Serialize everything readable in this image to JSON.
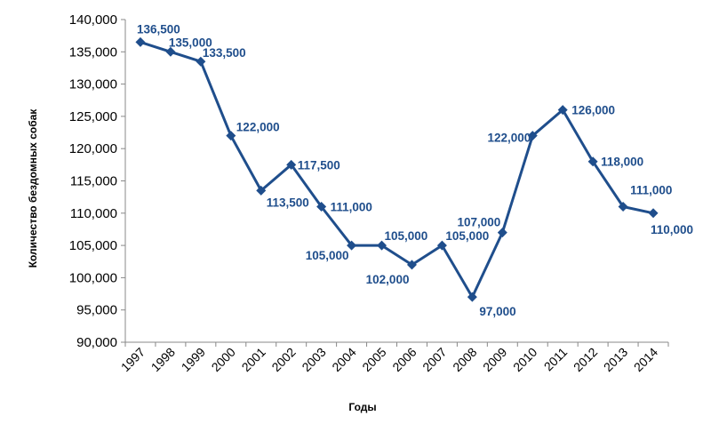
{
  "chart_data": {
    "type": "line",
    "x": [
      "1997",
      "1998",
      "1999",
      "2000",
      "2001",
      "2002",
      "2003",
      "2004",
      "2005",
      "2006",
      "2007",
      "2008",
      "2009",
      "2010",
      "2011",
      "2012",
      "2013",
      "2014"
    ],
    "series": [
      {
        "values": [
          136500,
          135000,
          133500,
          122000,
          113500,
          117500,
          111000,
          105000,
          105000,
          102000,
          105000,
          97000,
          107000,
          122000,
          126000,
          118000,
          111000,
          110000
        ],
        "data_labels": [
          "136,500",
          "135,000",
          "133,500",
          "122,000",
          "113,500",
          "117,500",
          "111,000",
          "105,000",
          "105,000",
          "102,000",
          "105,000",
          "97,000",
          "107,000",
          "122,000",
          "126,000",
          "118,000",
          "111,000",
          "110,000"
        ]
      }
    ],
    "xlabel": "Годы",
    "ylabel": "Количество бездомных собак",
    "ylim": [
      90000,
      140000
    ],
    "y_ticks": [
      "90,000",
      "95,000",
      "100,000",
      "105,000",
      "110,000",
      "115,000",
      "120,000",
      "125,000",
      "130,000",
      "135,000",
      "140,000"
    ],
    "y_tick_values": [
      90000,
      95000,
      100000,
      105000,
      110000,
      115000,
      120000,
      125000,
      130000,
      135000,
      140000
    ],
    "grid": false,
    "colors": {
      "line": "#1f4e8c",
      "marker": "#1f4e8c",
      "label": "#1f4e8c",
      "axis": "#888888"
    }
  }
}
